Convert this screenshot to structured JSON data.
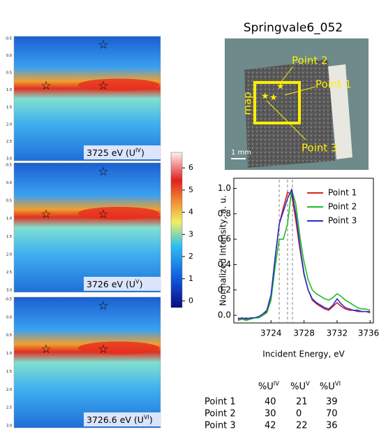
{
  "title": "Springvale6_052",
  "heatmaps": {
    "yticks": [
      "-0.5",
      "0.0",
      "0.5",
      "1.0",
      "1.5",
      "2.0",
      "2.5",
      "3.0"
    ],
    "panels": [
      {
        "text": "3725 eV (U",
        "sup": "IV",
        "end": ")"
      },
      {
        "text": "3726 eV (U",
        "sup": "V",
        "end": ")"
      },
      {
        "text": "3726.6 eV (U",
        "sup": "VI",
        "end": ")"
      }
    ]
  },
  "colorbar": {
    "ticks": [
      0,
      1,
      2,
      3,
      4,
      5,
      6
    ],
    "lim": [
      -0.3,
      6.7
    ]
  },
  "photo": {
    "labels": [
      "Point 2",
      "Point 1",
      "Point 3"
    ],
    "map": "map",
    "scale": "1 mm"
  },
  "chart_data": {
    "type": "line",
    "xlabel": "Incident Energy, eV",
    "ylabel": "Normalized Intensity, a. u.",
    "xlim": [
      3719.5,
      3736.4
    ],
    "ylim": [
      -0.06,
      1.08
    ],
    "xticks": [
      3724,
      3728,
      3732,
      3736
    ],
    "yticks": [
      {
        "value": 0,
        "label": "0.0"
      },
      {
        "value": 0.2,
        "label": "0.2"
      },
      {
        "value": 0.4,
        "label": "0.4"
      },
      {
        "value": 0.6,
        "label": "0.6"
      },
      {
        "value": 0.8,
        "label": "0.8"
      },
      {
        "value": 1,
        "label": "1.0"
      }
    ],
    "reference_lines": [
      3725,
      3726,
      3726.6
    ],
    "x": [
      3720,
      3720.5,
      3721,
      3721.5,
      3722,
      3722.5,
      3723,
      3723.5,
      3724,
      3724.5,
      3725,
      3725.5,
      3726,
      3726.5,
      3727,
      3727.5,
      3728,
      3728.5,
      3729,
      3729.5,
      3730,
      3730.5,
      3731,
      3731.5,
      3732,
      3732.5,
      3733,
      3733.5,
      3734,
      3734.5,
      3735,
      3735.5,
      3736
    ],
    "series": [
      {
        "name": "Point 1",
        "color": "#e02020",
        "values": [
          -0.02,
          -0.03,
          -0.02,
          -0.03,
          -0.02,
          -0.02,
          0,
          0.03,
          0.15,
          0.45,
          0.72,
          0.85,
          0.97,
          0.95,
          0.75,
          0.52,
          0.32,
          0.2,
          0.12,
          0.09,
          0.07,
          0.05,
          0.04,
          0.07,
          0.1,
          0.07,
          0.05,
          0.04,
          0.04,
          0.03,
          0.03,
          0.03,
          0.02
        ]
      },
      {
        "name": "Point 2",
        "color": "#22bb22",
        "values": [
          -0.04,
          -0.03,
          -0.04,
          -0.03,
          -0.02,
          -0.02,
          0,
          0.02,
          0.12,
          0.38,
          0.6,
          0.6,
          0.72,
          0.99,
          0.88,
          0.62,
          0.42,
          0.28,
          0.2,
          0.17,
          0.15,
          0.13,
          0.12,
          0.14,
          0.17,
          0.15,
          0.12,
          0.1,
          0.08,
          0.06,
          0.05,
          0.05,
          0.04
        ]
      },
      {
        "name": "Point 3",
        "color": "#2030d0",
        "values": [
          -0.03,
          -0.02,
          -0.03,
          -0.02,
          -0.02,
          -0.01,
          0.01,
          0.04,
          0.16,
          0.45,
          0.72,
          0.82,
          0.92,
          0.99,
          0.8,
          0.55,
          0.33,
          0.2,
          0.13,
          0.1,
          0.08,
          0.06,
          0.05,
          0.08,
          0.13,
          0.09,
          0.06,
          0.05,
          0.04,
          0.04,
          0.03,
          0.03,
          0.03
        ]
      }
    ]
  },
  "table": {
    "header": [
      {
        "base": "%U",
        "sup": "IV"
      },
      {
        "base": "%U",
        "sup": "V"
      },
      {
        "base": "%U",
        "sup": "VI"
      }
    ],
    "rows": [
      [
        "Point 1",
        "40",
        "21",
        "39"
      ],
      [
        "Point 2",
        "30",
        "0",
        "70"
      ],
      [
        "Point 3",
        "42",
        "22",
        "36"
      ]
    ]
  }
}
